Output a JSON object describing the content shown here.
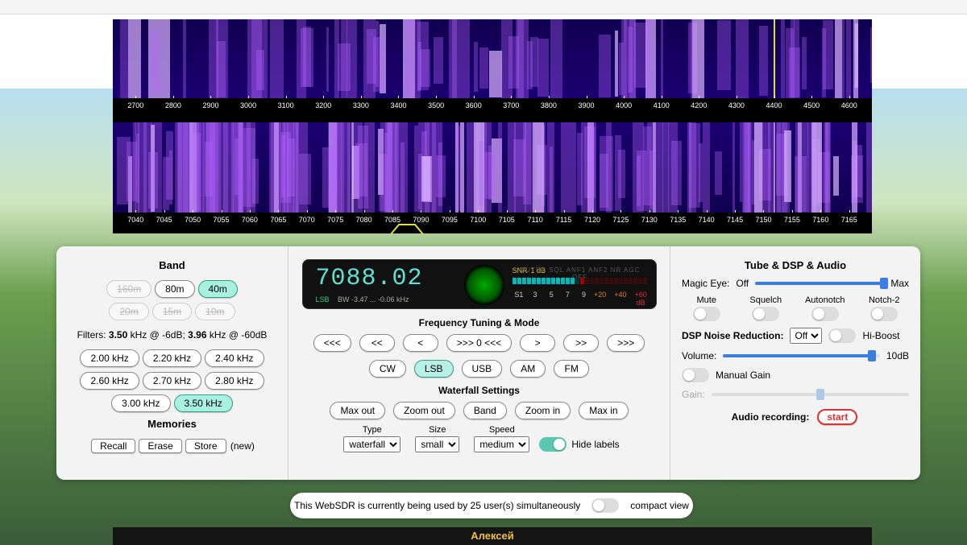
{
  "waterfall": {
    "axis_top": [
      "2700",
      "2800",
      "2900",
      "3000",
      "3100",
      "3200",
      "3300",
      "3400",
      "3500",
      "3600",
      "3700",
      "3800",
      "3900",
      "4000",
      "4100",
      "4200",
      "4300",
      "4400",
      "4500",
      "4600"
    ],
    "axis_bottom": [
      "7040",
      "7045",
      "7050",
      "7055",
      "7060",
      "7065",
      "7070",
      "7075",
      "7080",
      "7085",
      "7090",
      "7095",
      "7100",
      "7105",
      "7110",
      "7115",
      "7120",
      "7125",
      "7130",
      "7135",
      "7140",
      "7145",
      "7150",
      "7155",
      "7160",
      "7165"
    ],
    "bg_top": "#1a0070",
    "bg_bottom": "#100050",
    "signal_color": "#b470ff",
    "strong_color": "#e0c8ff"
  },
  "display": {
    "frequency": "7088.02",
    "mode_label": "LSB",
    "bw_label": "BW -3.47 ... -0.06 kHz",
    "snr_label": "SNR",
    "snr_value": "1 dB",
    "flags": "MUTED  SQL  ANF1  ANF2  NR  AGC OFF",
    "s_scale": [
      "S1",
      "3",
      "5",
      "7",
      "9"
    ],
    "p_scale": [
      "+20",
      "+40",
      "+60 dB"
    ]
  },
  "band": {
    "title": "Band",
    "items": [
      {
        "label": "160m",
        "disabled": true
      },
      {
        "label": "80m",
        "disabled": false
      },
      {
        "label": "40m",
        "disabled": false,
        "selected": true
      },
      {
        "label": "20m",
        "disabled": true
      },
      {
        "label": "15m",
        "disabled": true
      },
      {
        "label": "10m",
        "disabled": true
      }
    ],
    "filters_label": "Filters:",
    "f1": "3.50",
    "f1_unit": "kHz @ -6dB;",
    "f2": "3.96",
    "f2_unit": "kHz @ -60dB",
    "filter_buttons": [
      "2.00 kHz",
      "2.20 kHz",
      "2.40 kHz",
      "2.60 kHz",
      "2.70 kHz",
      "2.80 kHz",
      "3.00 kHz",
      "3.50 kHz"
    ],
    "filter_selected": "3.50 kHz",
    "memories_title": "Memories",
    "mem_buttons": [
      "Recall",
      "Erase",
      "Store"
    ],
    "mem_new": "(new)"
  },
  "tuning": {
    "title": "Frequency Tuning & Mode",
    "step_buttons": [
      "<<<",
      "<<",
      "<",
      ">>> 0 <<<",
      ">",
      ">>",
      ">>>"
    ],
    "modes": [
      "CW",
      "LSB",
      "USB",
      "AM",
      "FM"
    ],
    "mode_selected": "LSB",
    "wf_title": "Waterfall Settings",
    "wf_buttons": [
      "Max out",
      "Zoom out",
      "Band",
      "Zoom in",
      "Max in"
    ],
    "type_label": "Type",
    "type_value": "waterfall",
    "size_label": "Size",
    "size_value": "small",
    "speed_label": "Speed",
    "speed_value": "medium",
    "hide_labels": "Hide labels"
  },
  "dsp": {
    "title": "Tube & DSP & Audio",
    "magic_eye_label": "Magic Eye:",
    "magic_eye_off": "Off",
    "magic_eye_max": "Max",
    "mute": "Mute",
    "squelch": "Squelch",
    "autonotch": "Autonotch",
    "notch2": "Notch-2",
    "nr_label": "DSP Noise Reduction:",
    "nr_value": "Off",
    "hiboost": "Hi-Boost",
    "volume_label": "Volume:",
    "volume_value": "10dB",
    "manual_gain": "Manual Gain",
    "gain_label": "Gain:",
    "rec_label": "Audio recording:",
    "rec_button": "start"
  },
  "status": {
    "text": "This WebSDR is currently being used by 25 user(s) simultaneously",
    "compact": "compact view"
  },
  "footer": {
    "name": "Алексей"
  },
  "colors": {
    "accent": "#3a7fe0",
    "pill_sel": "#a8f0e0"
  }
}
